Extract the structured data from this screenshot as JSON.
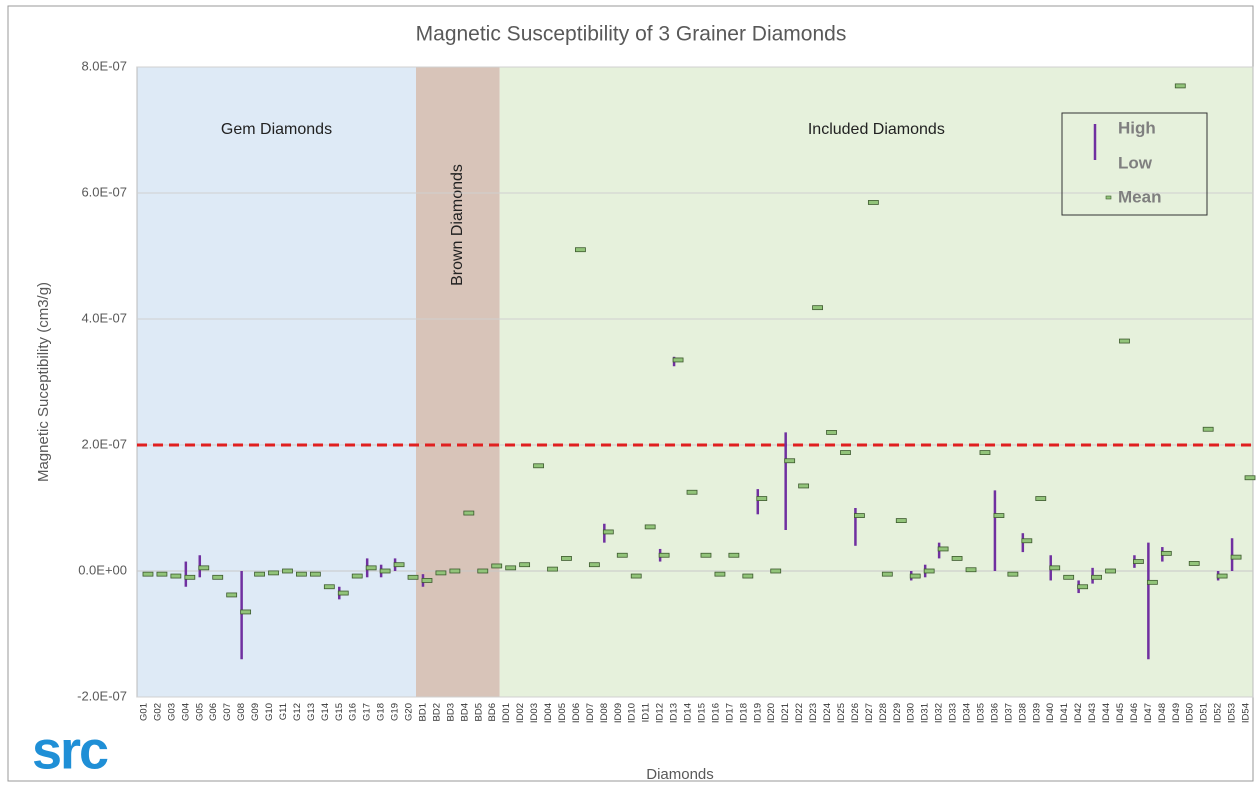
{
  "chart_data": {
    "type": "high-low-mean",
    "title": "Magnetic Susceptibility of 3 Grainer Diamonds",
    "ylabel": "Magnetic Suceptibility (cm3/g)",
    "xlabel": "Diamonds",
    "logo": "src",
    "categories": [
      "G01",
      "G02",
      "G03",
      "G04",
      "G05",
      "G06",
      "G07",
      "G08",
      "G09",
      "G10",
      "G11",
      "G12",
      "G13",
      "G14",
      "G15",
      "G16",
      "G17",
      "G18",
      "G19",
      "G20",
      "BD1",
      "BD2",
      "BD3",
      "BD4",
      "BD5",
      "BD6",
      "ID01",
      "ID02",
      "ID03",
      "ID04",
      "ID05",
      "ID06",
      "ID07",
      "ID08",
      "ID09",
      "ID10",
      "ID11",
      "ID12",
      "ID13",
      "ID14",
      "ID15",
      "ID16",
      "ID17",
      "ID18",
      "ID19",
      "ID20",
      "ID21",
      "ID22",
      "ID23",
      "ID24",
      "ID25",
      "ID26",
      "ID27",
      "ID28",
      "ID29",
      "ID30",
      "ID31",
      "ID32",
      "ID33",
      "ID34",
      "ID35",
      "ID36",
      "ID37",
      "ID38",
      "ID39",
      "ID40",
      "ID41",
      "ID42",
      "ID43",
      "ID44",
      "ID45",
      "ID46",
      "ID47",
      "ID48",
      "ID49",
      "ID50",
      "ID51",
      "ID52",
      "ID53",
      "ID54"
    ],
    "series": [
      {
        "name": "High",
        "color": "#7030a0",
        "values": [
          -5e-09,
          -5e-09,
          -8e-09,
          1.5e-08,
          2.5e-08,
          -1e-08,
          -3.8e-08,
          0,
          -5e-09,
          -3e-09,
          0,
          -5e-09,
          -5e-09,
          -2.5e-08,
          -2.5e-08,
          -8e-09,
          2e-08,
          1e-08,
          2e-08,
          -1e-08,
          -5e-09,
          -3e-09,
          0,
          9.2e-08,
          0,
          8e-09,
          5e-09,
          1e-08,
          1.67e-07,
          3e-09,
          2e-08,
          5.1e-07,
          1e-08,
          7.5e-08,
          2.5e-08,
          -8e-09,
          7e-08,
          3.5e-08,
          3.4e-07,
          1.25e-07,
          2.5e-08,
          -5e-09,
          2.5e-08,
          -8e-09,
          1.3e-07,
          0,
          2.2e-07,
          1.35e-07,
          4.18e-07,
          2.2e-07,
          1.88e-07,
          1e-07,
          5.85e-07,
          -5e-09,
          8e-08,
          0,
          1e-08,
          4.5e-08,
          2e-08,
          2e-09,
          1.88e-07,
          1.28e-07,
          -5e-09,
          6e-08,
          1.15e-07,
          2.5e-08,
          -1e-08,
          -1.5e-08,
          5e-09,
          0,
          3.65e-07,
          2.5e-08,
          4.5e-08,
          3.8e-08,
          7.7e-07,
          1.2e-08,
          2.25e-07,
          0,
          5.2e-08,
          1.48e-07
        ]
      },
      {
        "name": "Low",
        "color": "#7030a0",
        "values": [
          -5e-09,
          -5e-09,
          -8e-09,
          -2.5e-08,
          -1e-08,
          -1e-08,
          -3.8e-08,
          -1.4e-07,
          -5e-09,
          -3e-09,
          0,
          -5e-09,
          -5e-09,
          -2.5e-08,
          -4.5e-08,
          -8e-09,
          -1e-08,
          -1e-08,
          0,
          -1e-08,
          -2.5e-08,
          -3e-09,
          0,
          9.2e-08,
          0,
          8e-09,
          5e-09,
          1e-08,
          1.67e-07,
          3e-09,
          2e-08,
          5.1e-07,
          1e-08,
          4.5e-08,
          2.5e-08,
          -8e-09,
          7e-08,
          1.5e-08,
          3.25e-07,
          1.25e-07,
          2.5e-08,
          -5e-09,
          2.5e-08,
          -8e-09,
          9e-08,
          0,
          6.5e-08,
          1.35e-07,
          4.18e-07,
          2.2e-07,
          1.88e-07,
          4e-08,
          5.85e-07,
          -5e-09,
          8e-08,
          -1.5e-08,
          -1e-08,
          2e-08,
          2e-08,
          2e-09,
          1.88e-07,
          0,
          -5e-09,
          3e-08,
          1.15e-07,
          -1.5e-08,
          -1e-08,
          -3.5e-08,
          -2e-08,
          0,
          3.65e-07,
          5e-09,
          -1.4e-07,
          1.5e-08,
          7.7e-07,
          1.2e-08,
          2.25e-07,
          -1.5e-08,
          0,
          1.48e-07
        ]
      },
      {
        "name": "Mean",
        "color": "#92c47a",
        "values": [
          -5e-09,
          -5e-09,
          -8e-09,
          -1e-08,
          5e-09,
          -1e-08,
          -3.8e-08,
          -6.5e-08,
          -5e-09,
          -3e-09,
          0,
          -5e-09,
          -5e-09,
          -2.5e-08,
          -3.5e-08,
          -8e-09,
          5e-09,
          0,
          1e-08,
          -1e-08,
          -1.5e-08,
          -3e-09,
          0,
          9.2e-08,
          0,
          8e-09,
          5e-09,
          1e-08,
          1.67e-07,
          3e-09,
          2e-08,
          5.1e-07,
          1e-08,
          6.2e-08,
          2.5e-08,
          -8e-09,
          7e-08,
          2.5e-08,
          3.35e-07,
          1.25e-07,
          2.5e-08,
          -5e-09,
          2.5e-08,
          -8e-09,
          1.15e-07,
          0,
          1.75e-07,
          1.35e-07,
          4.18e-07,
          2.2e-07,
          1.88e-07,
          8.8e-08,
          5.85e-07,
          -5e-09,
          8e-08,
          -8e-09,
          0,
          3.5e-08,
          2e-08,
          2e-09,
          1.88e-07,
          8.8e-08,
          -5e-09,
          4.8e-08,
          1.15e-07,
          5e-09,
          -1e-08,
          -2.5e-08,
          -1e-08,
          0,
          3.65e-07,
          1.5e-08,
          -1.8e-08,
          2.8e-08,
          7.7e-07,
          1.2e-08,
          2.25e-07,
          -8e-09,
          2.2e-08,
          1.48e-07
        ]
      }
    ],
    "regions": [
      {
        "label": "Gem Diamonds",
        "from": "G01",
        "to": "G20",
        "color": "#deeaf6"
      },
      {
        "label": "Brown Diamonds",
        "from": "BD1",
        "to": "BD6",
        "color": "#d8c4b9"
      },
      {
        "label": "Included Diamonds",
        "from": "ID01",
        "to": "ID54",
        "color": "#e6f1dc"
      }
    ],
    "threshold": {
      "value": 2e-07,
      "color": "#e02020"
    },
    "ylim": [
      -2e-07,
      8e-07
    ],
    "yticks": [
      {
        "value": -2e-07,
        "label": "-2.0E-07"
      },
      {
        "value": 0,
        "label": "0.0E+00"
      },
      {
        "value": 2e-07,
        "label": "2.0E-07"
      },
      {
        "value": 4e-07,
        "label": "4.0E-07"
      },
      {
        "value": 6e-07,
        "label": "6.0E-07"
      },
      {
        "value": 8e-07,
        "label": "8.0E-07"
      }
    ],
    "grid": true,
    "legend": "upper right"
  }
}
